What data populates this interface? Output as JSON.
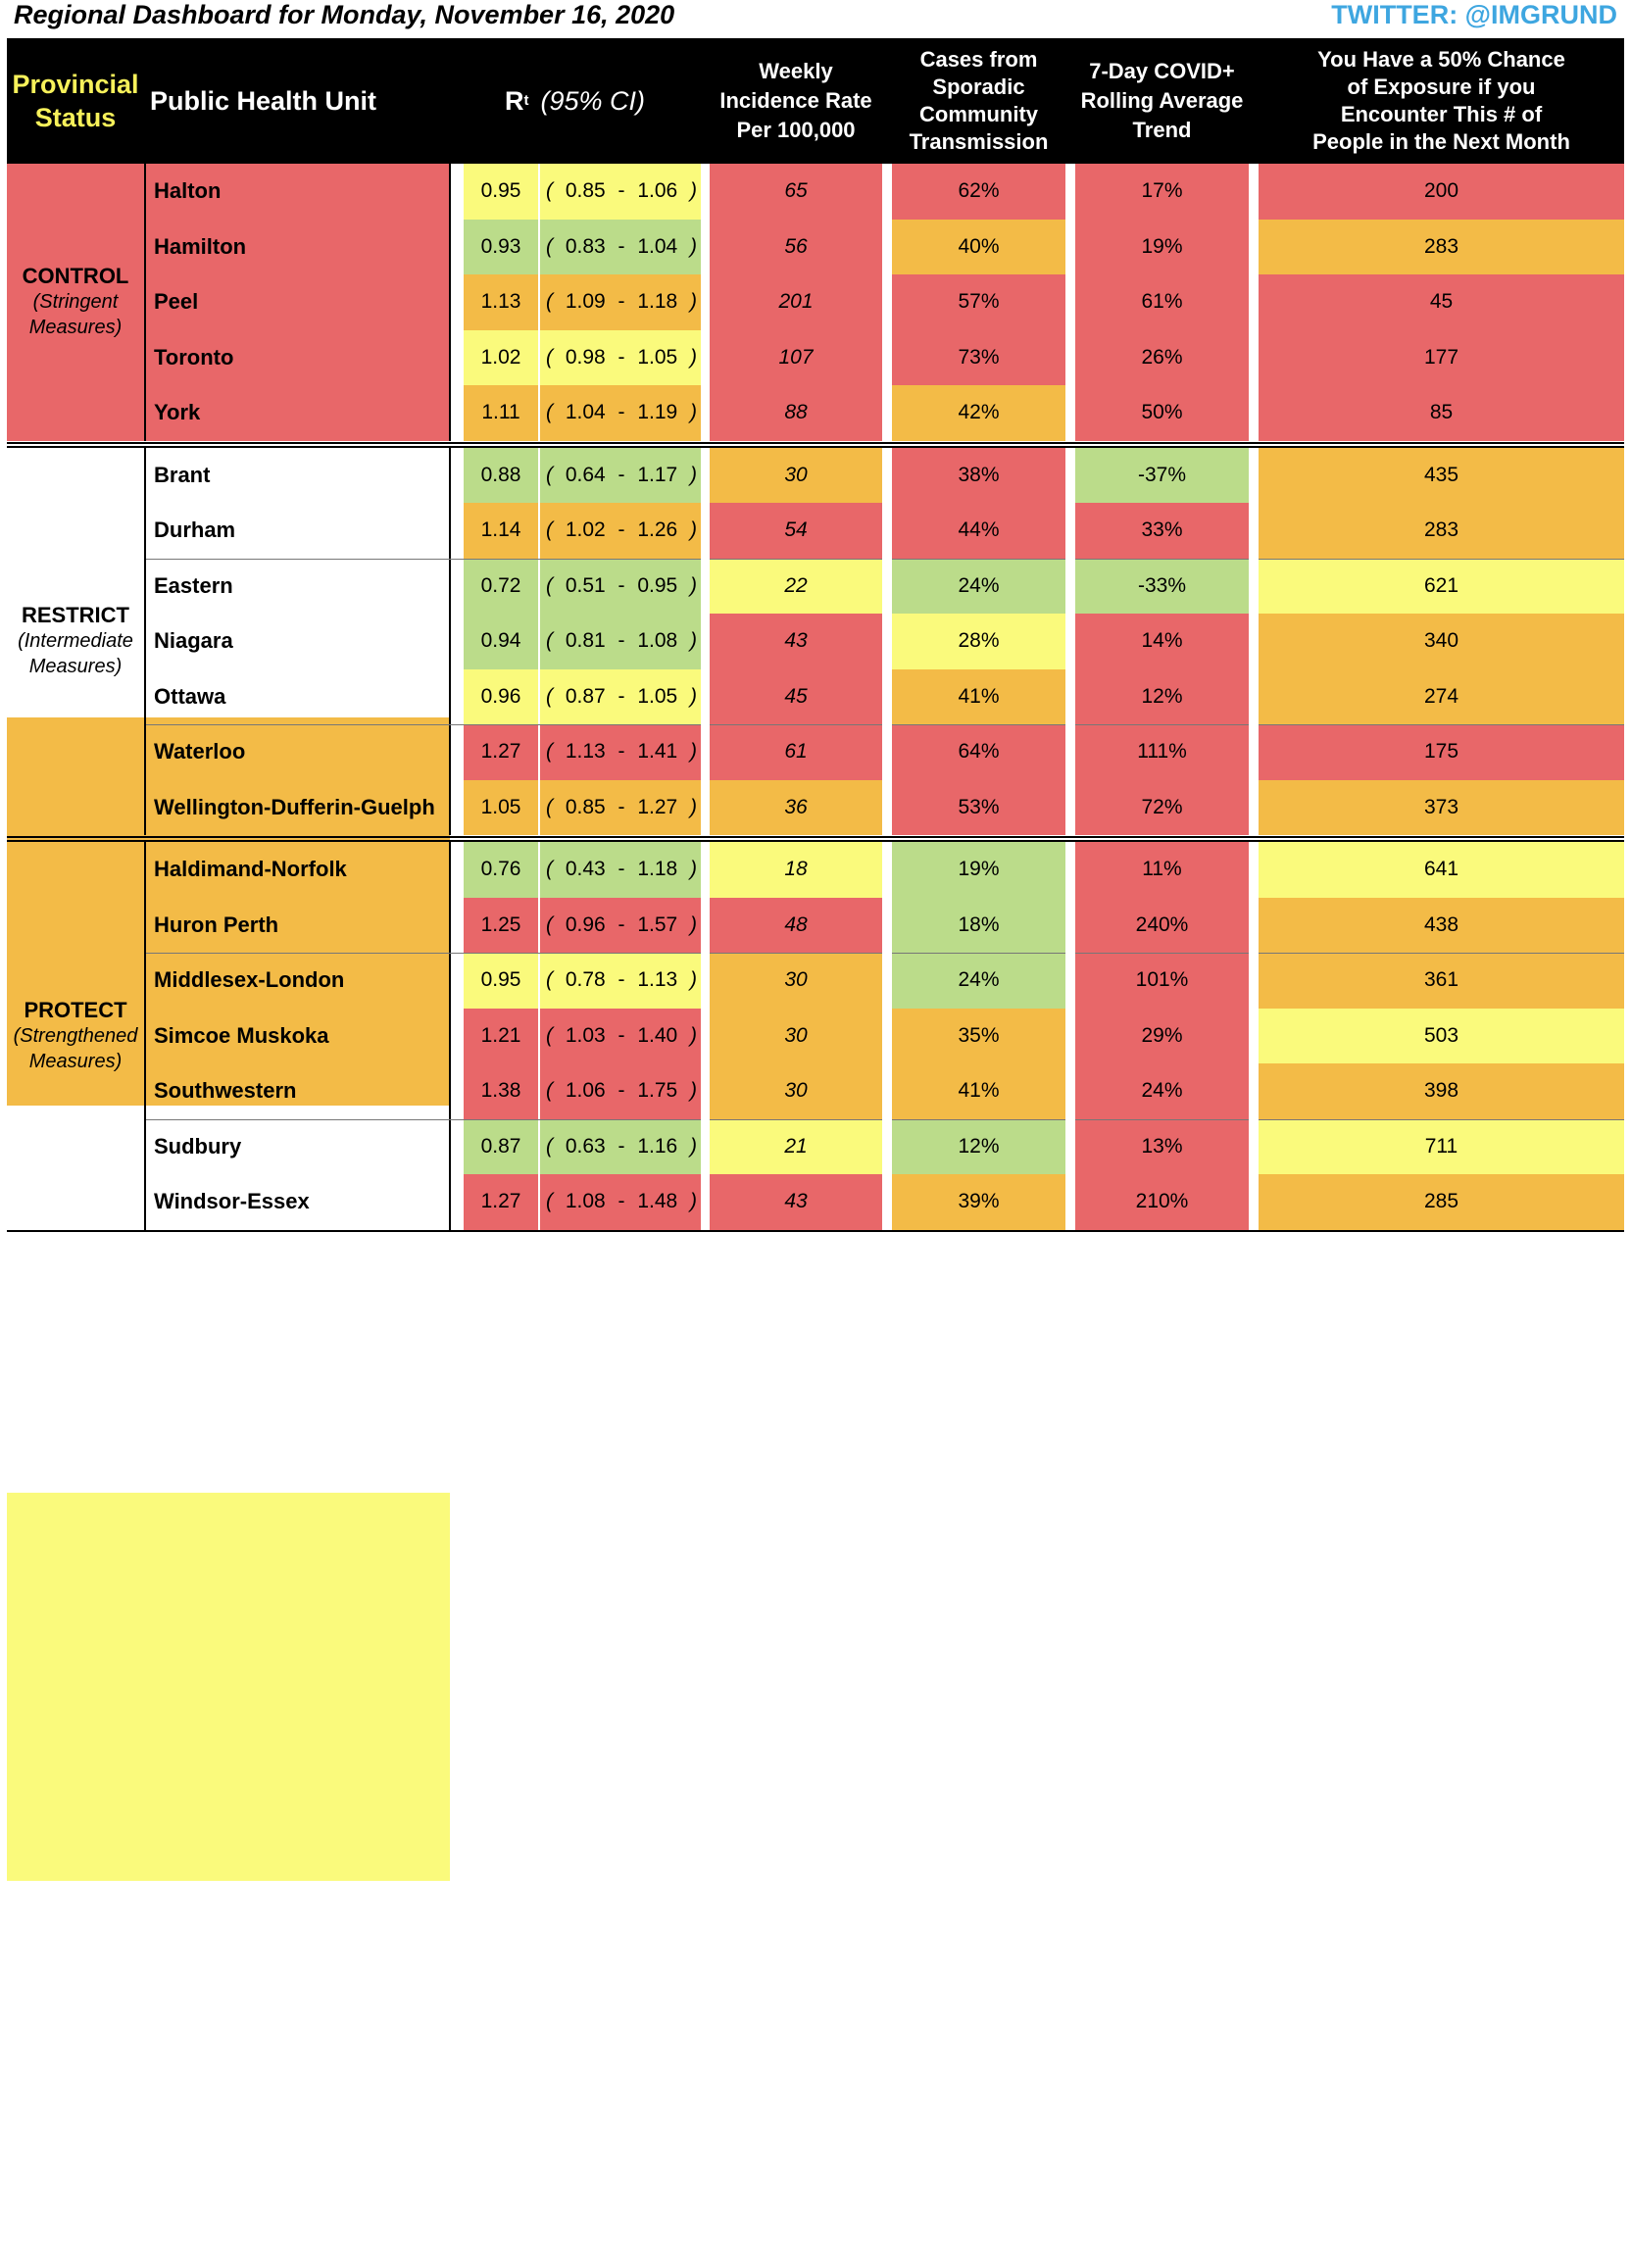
{
  "title": "Regional Dashboard for Monday, November 16, 2020",
  "twitter": "TWITTER: @IMGRUND",
  "headers": {
    "status_line1": "Provincial",
    "status_line2": "Status",
    "unit": "Public Health Unit",
    "rt_symbol": "R",
    "rt_sub": "t",
    "rt_ci": "(95% CI)",
    "incidence": [
      "Weekly",
      "Incidence Rate",
      "Per 100,000"
    ],
    "sporadic": [
      "Cases from",
      "Sporadic",
      "Community",
      "Transmission"
    ],
    "trend": [
      "7-Day COVID+",
      "Rolling Average",
      "Trend"
    ],
    "exposure": [
      "You Have a 50% Chance",
      "of Exposure if you",
      "Encounter This # of",
      "People in the Next Month"
    ]
  },
  "groups": [
    {
      "name": "CONTROL",
      "desc_line1": "(Stringent",
      "desc_line2": "Measures)",
      "color": "#e86769"
    },
    {
      "name": "RESTRICT",
      "desc_line1": "(Intermediate",
      "desc_line2": "Measures)",
      "color": "#f3bb47"
    },
    {
      "name": "PROTECT",
      "desc_line1": "(Strengthened",
      "desc_line2": "Measures)",
      "color": "#fafa7c"
    }
  ],
  "ci_dash": "-",
  "ci_open": "(",
  "ci_close": ")",
  "rows": [
    {
      "unit": "Halton",
      "rt": "0.95",
      "lo": "0.85",
      "hi": "1.06",
      "rt_color": "yellow",
      "inc": "65",
      "inc_color": "red",
      "spor": "62%",
      "spor_color": "red",
      "trend": "17%",
      "trend_color": "red",
      "exp": "200",
      "exp_color": "red"
    },
    {
      "unit": "Hamilton",
      "rt": "0.93",
      "lo": "0.83",
      "hi": "1.04",
      "rt_color": "green",
      "inc": "56",
      "inc_color": "red",
      "spor": "40%",
      "spor_color": "orange",
      "trend": "19%",
      "trend_color": "red",
      "exp": "283",
      "exp_color": "orange"
    },
    {
      "unit": "Peel",
      "rt": "1.13",
      "lo": "1.09",
      "hi": "1.18",
      "rt_color": "orange",
      "inc": "201",
      "inc_color": "red",
      "spor": "57%",
      "spor_color": "red",
      "trend": "61%",
      "trend_color": "red",
      "exp": "45",
      "exp_color": "red"
    },
    {
      "unit": "Toronto",
      "rt": "1.02",
      "lo": "0.98",
      "hi": "1.05",
      "rt_color": "yellow",
      "inc": "107",
      "inc_color": "red",
      "spor": "73%",
      "spor_color": "red",
      "trend": "26%",
      "trend_color": "red",
      "exp": "177",
      "exp_color": "red"
    },
    {
      "unit": "York",
      "rt": "1.11",
      "lo": "1.04",
      "hi": "1.19",
      "rt_color": "orange",
      "inc": "88",
      "inc_color": "red",
      "spor": "42%",
      "spor_color": "orange",
      "trend": "50%",
      "trend_color": "red",
      "exp": "85",
      "exp_color": "red"
    },
    {
      "unit": "Brant",
      "rt": "0.88",
      "lo": "0.64",
      "hi": "1.17",
      "rt_color": "green",
      "inc": "30",
      "inc_color": "orange",
      "spor": "38%",
      "spor_color": "red",
      "trend": "-37%",
      "trend_color": "green",
      "exp": "435",
      "exp_color": "orange"
    },
    {
      "unit": "Durham",
      "rt": "1.14",
      "lo": "1.02",
      "hi": "1.26",
      "rt_color": "orange",
      "inc": "54",
      "inc_color": "red",
      "spor": "44%",
      "spor_color": "red",
      "trend": "33%",
      "trend_color": "red",
      "exp": "283",
      "exp_color": "orange"
    },
    {
      "unit": "Eastern",
      "rt": "0.72",
      "lo": "0.51",
      "hi": "0.95",
      "rt_color": "green",
      "inc": "22",
      "inc_color": "yellow",
      "spor": "24%",
      "spor_color": "green",
      "trend": "-33%",
      "trend_color": "green",
      "exp": "621",
      "exp_color": "yellow"
    },
    {
      "unit": "Niagara",
      "rt": "0.94",
      "lo": "0.81",
      "hi": "1.08",
      "rt_color": "green",
      "inc": "43",
      "inc_color": "red",
      "spor": "28%",
      "spor_color": "yellow",
      "trend": "14%",
      "trend_color": "red",
      "exp": "340",
      "exp_color": "orange"
    },
    {
      "unit": "Ottawa",
      "rt": "0.96",
      "lo": "0.87",
      "hi": "1.05",
      "rt_color": "yellow",
      "inc": "45",
      "inc_color": "red",
      "spor": "41%",
      "spor_color": "orange",
      "trend": "12%",
      "trend_color": "red",
      "exp": "274",
      "exp_color": "orange"
    },
    {
      "unit": "Waterloo",
      "rt": "1.27",
      "lo": "1.13",
      "hi": "1.41",
      "rt_color": "red",
      "inc": "61",
      "inc_color": "red",
      "spor": "64%",
      "spor_color": "red",
      "trend": "111%",
      "trend_color": "red",
      "exp": "175",
      "exp_color": "red"
    },
    {
      "unit": "Wellington-Dufferin-Guelph",
      "rt": "1.05",
      "lo": "0.85",
      "hi": "1.27",
      "rt_color": "orange",
      "inc": "36",
      "inc_color": "orange",
      "spor": "53%",
      "spor_color": "red",
      "trend": "72%",
      "trend_color": "red",
      "exp": "373",
      "exp_color": "orange"
    },
    {
      "unit": "Haldimand-Norfolk",
      "rt": "0.76",
      "lo": "0.43",
      "hi": "1.18",
      "rt_color": "green",
      "inc": "18",
      "inc_color": "yellow",
      "spor": "19%",
      "spor_color": "green",
      "trend": "11%",
      "trend_color": "red",
      "exp": "641",
      "exp_color": "yellow"
    },
    {
      "unit": "Huron Perth",
      "rt": "1.25",
      "lo": "0.96",
      "hi": "1.57",
      "rt_color": "red",
      "inc": "48",
      "inc_color": "red",
      "spor": "18%",
      "spor_color": "green",
      "trend": "240%",
      "trend_color": "red",
      "exp": "438",
      "exp_color": "orange"
    },
    {
      "unit": "Middlesex-London",
      "rt": "0.95",
      "lo": "0.78",
      "hi": "1.13",
      "rt_color": "yellow",
      "inc": "30",
      "inc_color": "orange",
      "spor": "24%",
      "spor_color": "green",
      "trend": "101%",
      "trend_color": "red",
      "exp": "361",
      "exp_color": "orange"
    },
    {
      "unit": "Simcoe Muskoka",
      "rt": "1.21",
      "lo": "1.03",
      "hi": "1.40",
      "rt_color": "red",
      "inc": "30",
      "inc_color": "orange",
      "spor": "35%",
      "spor_color": "orange",
      "trend": "29%",
      "trend_color": "red",
      "exp": "503",
      "exp_color": "yellow"
    },
    {
      "unit": "Southwestern",
      "rt": "1.38",
      "lo": "1.06",
      "hi": "1.75",
      "rt_color": "red",
      "inc": "30",
      "inc_color": "orange",
      "spor": "41%",
      "spor_color": "orange",
      "trend": "24%",
      "trend_color": "red",
      "exp": "398",
      "exp_color": "orange"
    },
    {
      "unit": "Sudbury",
      "rt": "0.87",
      "lo": "0.63",
      "hi": "1.16",
      "rt_color": "green",
      "inc": "21",
      "inc_color": "yellow",
      "spor": "12%",
      "spor_color": "green",
      "trend": "13%",
      "trend_color": "red",
      "exp": "711",
      "exp_color": "yellow"
    },
    {
      "unit": "Windsor-Essex",
      "rt": "1.27",
      "lo": "1.08",
      "hi": "1.48",
      "rt_color": "red",
      "inc": "43",
      "inc_color": "red",
      "spor": "39%",
      "spor_color": "orange",
      "trend": "210%",
      "trend_color": "red",
      "exp": "285",
      "exp_color": "orange"
    }
  ]
}
